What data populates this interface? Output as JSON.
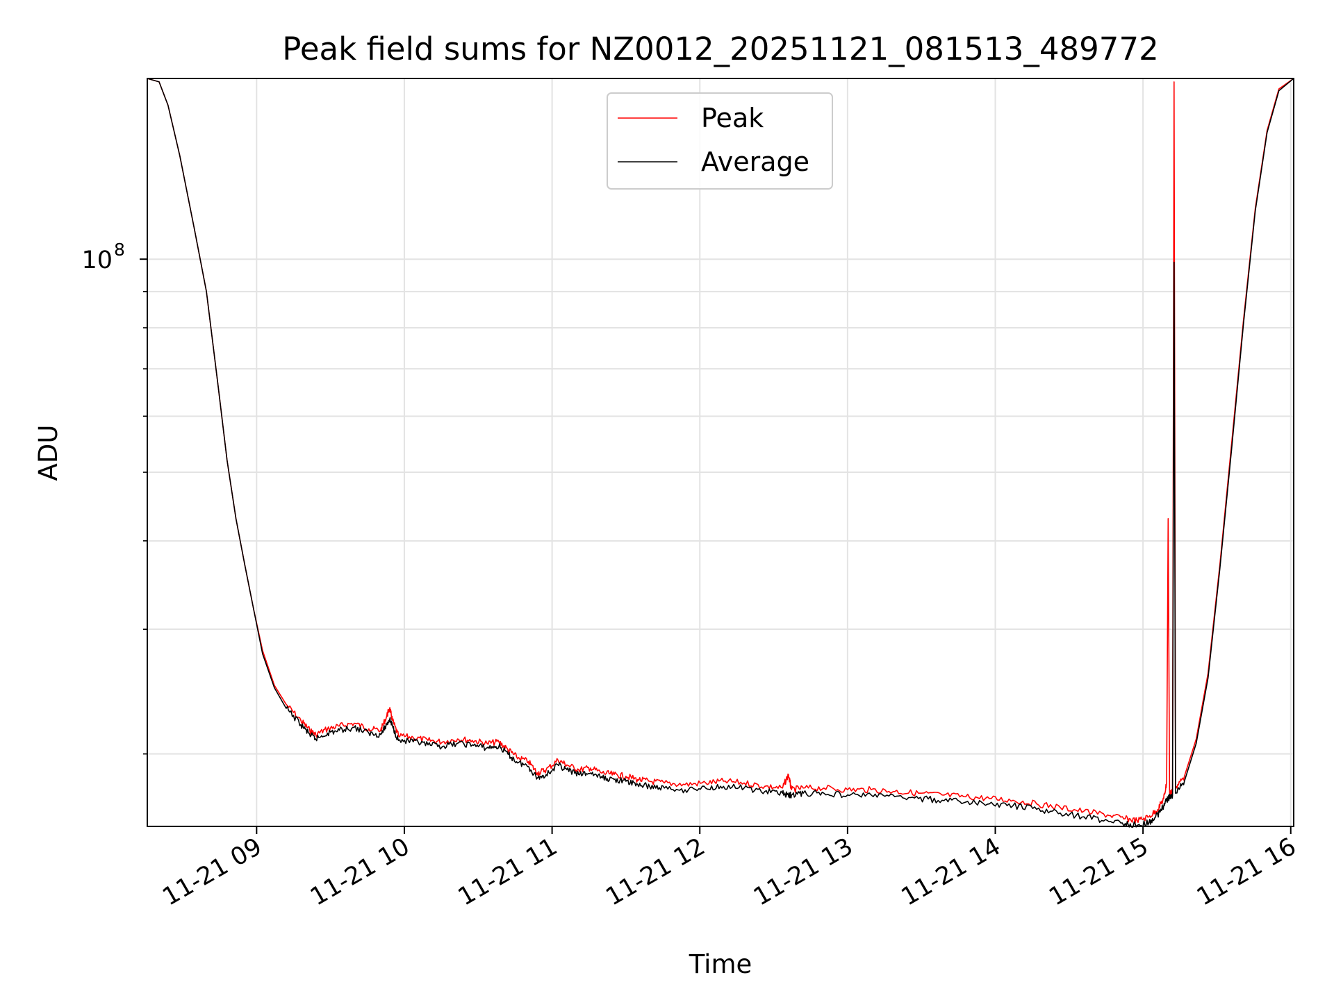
{
  "chart_data": {
    "type": "line",
    "title": "Peak field sums for NZ0012_20251121_081513_489772",
    "xlabel": "Time",
    "ylabel": "ADU",
    "y_scale": "log",
    "ylim": [
      15800000,
      180000000
    ],
    "xlim_hours": [
      8.26,
      16.02
    ],
    "grid": true,
    "legend_position": "upper center",
    "x_ticks": [
      {
        "value": 9,
        "label": "11-21 09"
      },
      {
        "value": 10,
        "label": "11-21 10"
      },
      {
        "value": 11,
        "label": "11-21 11"
      },
      {
        "value": 12,
        "label": "11-21 12"
      },
      {
        "value": 13,
        "label": "11-21 13"
      },
      {
        "value": 14,
        "label": "11-21 14"
      },
      {
        "value": 15,
        "label": "11-21 15"
      },
      {
        "value": 16,
        "label": "11-21 16"
      }
    ],
    "y_major_tick": {
      "value": 100000000,
      "base": "10",
      "exponent": "8"
    },
    "y_minor_ticks": [
      20000000,
      30000000,
      40000000,
      50000000,
      60000000,
      70000000,
      80000000,
      90000000,
      200000000
    ],
    "series": [
      {
        "name": "Peak",
        "color": "#ff0000",
        "points": [
          [
            8.26,
            180000000
          ],
          [
            8.34,
            178000000
          ],
          [
            8.4,
            165000000
          ],
          [
            8.48,
            140000000
          ],
          [
            8.58,
            110000000
          ],
          [
            8.66,
            90000000
          ],
          [
            8.74,
            66000000
          ],
          [
            8.8,
            52000000
          ],
          [
            8.86,
            43000000
          ],
          [
            8.92,
            37000000
          ],
          [
            8.98,
            32000000
          ],
          [
            9.04,
            28000000
          ],
          [
            9.12,
            25000000
          ],
          [
            9.2,
            23500000
          ],
          [
            9.3,
            22300000
          ],
          [
            9.36,
            21600000
          ],
          [
            9.4,
            21300000
          ],
          [
            9.48,
            21700000
          ],
          [
            9.56,
            21900000
          ],
          [
            9.66,
            22100000
          ],
          [
            9.76,
            21700000
          ],
          [
            9.84,
            21600000
          ],
          [
            9.88,
            22600000
          ],
          [
            9.9,
            23200000
          ],
          [
            9.92,
            22300000
          ],
          [
            9.96,
            21200000
          ],
          [
            10.06,
            21100000
          ],
          [
            10.16,
            20900000
          ],
          [
            10.26,
            20800000
          ],
          [
            10.36,
            21000000
          ],
          [
            10.46,
            20900000
          ],
          [
            10.56,
            20700000
          ],
          [
            10.64,
            20800000
          ],
          [
            10.7,
            20300000
          ],
          [
            10.76,
            19800000
          ],
          [
            10.84,
            19500000
          ],
          [
            10.9,
            18800000
          ],
          [
            10.96,
            19000000
          ],
          [
            11.04,
            19600000
          ],
          [
            11.1,
            19300000
          ],
          [
            11.18,
            19000000
          ],
          [
            11.26,
            19100000
          ],
          [
            11.34,
            18800000
          ],
          [
            11.42,
            18700000
          ],
          [
            11.5,
            18600000
          ],
          [
            11.58,
            18400000
          ],
          [
            11.66,
            18300000
          ],
          [
            11.76,
            18200000
          ],
          [
            11.9,
            18100000
          ],
          [
            12.04,
            18200000
          ],
          [
            12.16,
            18300000
          ],
          [
            12.3,
            18200000
          ],
          [
            12.44,
            18000000
          ],
          [
            12.56,
            17900000
          ],
          [
            12.6,
            18700000
          ],
          [
            12.62,
            17800000
          ],
          [
            12.7,
            17900000
          ],
          [
            12.84,
            17900000
          ],
          [
            13.0,
            17800000
          ],
          [
            13.16,
            17800000
          ],
          [
            13.32,
            17700000
          ],
          [
            13.48,
            17600000
          ],
          [
            13.64,
            17500000
          ],
          [
            13.8,
            17400000
          ],
          [
            13.96,
            17300000
          ],
          [
            14.12,
            17200000
          ],
          [
            14.28,
            17000000
          ],
          [
            14.44,
            16800000
          ],
          [
            14.6,
            16600000
          ],
          [
            14.76,
            16400000
          ],
          [
            14.88,
            16200000
          ],
          [
            14.96,
            16100000
          ],
          [
            15.04,
            16300000
          ],
          [
            15.1,
            16700000
          ],
          [
            15.14,
            17300000
          ],
          [
            15.16,
            18200000
          ],
          [
            15.17,
            43000000
          ],
          [
            15.18,
            17600000
          ],
          [
            15.2,
            17700000
          ],
          [
            15.21,
            178000000
          ],
          [
            15.22,
            17900000
          ],
          [
            15.28,
            18600000
          ],
          [
            15.36,
            21000000
          ],
          [
            15.44,
            26000000
          ],
          [
            15.52,
            37000000
          ],
          [
            15.6,
            55000000
          ],
          [
            15.68,
            82000000
          ],
          [
            15.76,
            118000000
          ],
          [
            15.84,
            152000000
          ],
          [
            15.92,
            174000000
          ],
          [
            16.02,
            180000000
          ]
        ]
      },
      {
        "name": "Average",
        "color": "#000000",
        "points": [
          [
            8.26,
            180000000
          ],
          [
            8.34,
            178000000
          ],
          [
            8.4,
            165000000
          ],
          [
            8.48,
            140000000
          ],
          [
            8.58,
            110000000
          ],
          [
            8.66,
            90000000
          ],
          [
            8.74,
            66000000
          ],
          [
            8.8,
            52000000
          ],
          [
            8.86,
            43000000
          ],
          [
            8.92,
            37000000
          ],
          [
            8.98,
            32000000
          ],
          [
            9.04,
            27700000
          ],
          [
            9.12,
            24800000
          ],
          [
            9.2,
            23200000
          ],
          [
            9.3,
            22000000
          ],
          [
            9.36,
            21300000
          ],
          [
            9.4,
            21000000
          ],
          [
            9.48,
            21400000
          ],
          [
            9.56,
            21600000
          ],
          [
            9.66,
            21800000
          ],
          [
            9.76,
            21400000
          ],
          [
            9.84,
            21300000
          ],
          [
            9.88,
            22000000
          ],
          [
            9.9,
            22400000
          ],
          [
            9.92,
            21900000
          ],
          [
            9.96,
            20900000
          ],
          [
            10.06,
            20800000
          ],
          [
            10.16,
            20600000
          ],
          [
            10.26,
            20500000
          ],
          [
            10.36,
            20700000
          ],
          [
            10.46,
            20600000
          ],
          [
            10.56,
            20400000
          ],
          [
            10.64,
            20500000
          ],
          [
            10.7,
            20000000
          ],
          [
            10.76,
            19500000
          ],
          [
            10.84,
            19200000
          ],
          [
            10.9,
            18500000
          ],
          [
            10.96,
            18700000
          ],
          [
            11.04,
            19300000
          ],
          [
            11.1,
            19000000
          ],
          [
            11.18,
            18700000
          ],
          [
            11.26,
            18800000
          ],
          [
            11.34,
            18500000
          ],
          [
            11.42,
            18400000
          ],
          [
            11.5,
            18300000
          ],
          [
            11.58,
            18100000
          ],
          [
            11.66,
            18000000
          ],
          [
            11.76,
            17900000
          ],
          [
            11.9,
            17800000
          ],
          [
            12.04,
            17900000
          ],
          [
            12.16,
            18000000
          ],
          [
            12.3,
            17900000
          ],
          [
            12.44,
            17700000
          ],
          [
            12.56,
            17600000
          ],
          [
            12.6,
            17500000
          ],
          [
            12.62,
            17500000
          ],
          [
            12.7,
            17600000
          ],
          [
            12.84,
            17600000
          ],
          [
            13.0,
            17500000
          ],
          [
            13.16,
            17500000
          ],
          [
            13.32,
            17400000
          ],
          [
            13.48,
            17300000
          ],
          [
            13.64,
            17200000
          ],
          [
            13.8,
            17100000
          ],
          [
            13.96,
            17000000
          ],
          [
            14.12,
            16900000
          ],
          [
            14.28,
            16700000
          ],
          [
            14.44,
            16500000
          ],
          [
            14.6,
            16300000
          ],
          [
            14.76,
            16100000
          ],
          [
            14.88,
            15950000
          ],
          [
            14.96,
            15850000
          ],
          [
            15.04,
            16000000
          ],
          [
            15.1,
            16400000
          ],
          [
            15.14,
            16900000
          ],
          [
            15.16,
            17200000
          ],
          [
            15.17,
            17300000
          ],
          [
            15.18,
            17400000
          ],
          [
            15.2,
            17500000
          ],
          [
            15.21,
            99000000
          ],
          [
            15.22,
            17600000
          ],
          [
            15.28,
            18300000
          ],
          [
            15.36,
            20700000
          ],
          [
            15.44,
            25600000
          ],
          [
            15.52,
            36500000
          ],
          [
            15.6,
            54000000
          ],
          [
            15.68,
            81000000
          ],
          [
            15.76,
            117000000
          ],
          [
            15.84,
            151000000
          ],
          [
            15.92,
            173000000
          ],
          [
            16.02,
            180000000
          ]
        ]
      }
    ]
  }
}
